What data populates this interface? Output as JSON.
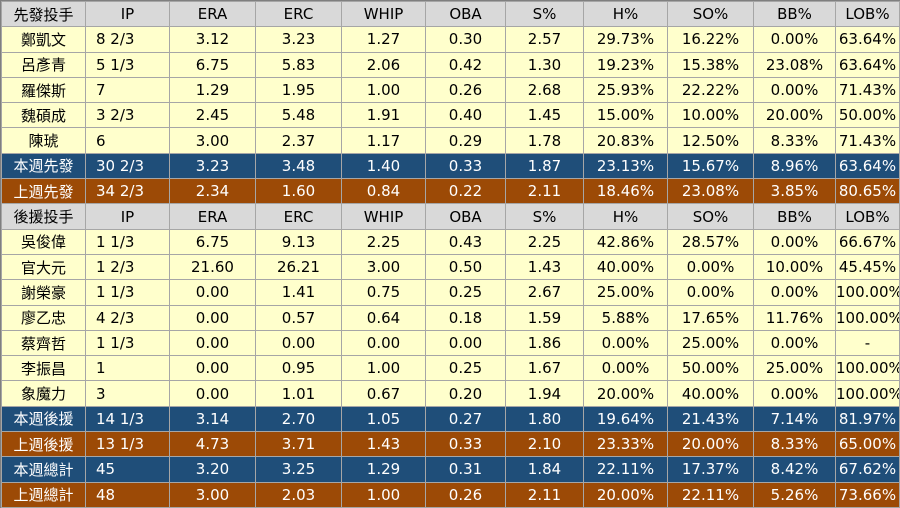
{
  "columns": [
    "IP",
    "ERA",
    "ERC",
    "WHIP",
    "OBA",
    "S%",
    "H%",
    "SO%",
    "BB%",
    "LOB%"
  ],
  "sections": [
    {
      "header": "先發投手",
      "players": [
        {
          "name": "鄭凱文",
          "stats": [
            "8 2/3",
            "3.12",
            "3.23",
            "1.27",
            "0.30",
            "2.57",
            "29.73%",
            "16.22%",
            "0.00%",
            "63.64%"
          ]
        },
        {
          "name": "呂彥青",
          "stats": [
            "5 1/3",
            "6.75",
            "5.83",
            "2.06",
            "0.42",
            "1.30",
            "19.23%",
            "15.38%",
            "23.08%",
            "63.64%"
          ]
        },
        {
          "name": "羅傑斯",
          "stats": [
            "7",
            "1.29",
            "1.95",
            "1.00",
            "0.26",
            "2.68",
            "25.93%",
            "22.22%",
            "0.00%",
            "71.43%"
          ]
        },
        {
          "name": "魏碩成",
          "stats": [
            "3 2/3",
            "2.45",
            "5.48",
            "1.91",
            "0.40",
            "1.45",
            "15.00%",
            "10.00%",
            "20.00%",
            "50.00%"
          ]
        },
        {
          "name": "陳琥",
          "stats": [
            "6",
            "3.00",
            "2.37",
            "1.17",
            "0.29",
            "1.78",
            "20.83%",
            "12.50%",
            "8.33%",
            "71.43%"
          ]
        }
      ],
      "totals": [
        {
          "label": "本週先發",
          "style": "blue",
          "stats": [
            "30 2/3",
            "3.23",
            "3.48",
            "1.40",
            "0.33",
            "1.87",
            "23.13%",
            "15.67%",
            "8.96%",
            "63.64%"
          ]
        },
        {
          "label": "上週先發",
          "style": "brown",
          "stats": [
            "34 2/3",
            "2.34",
            "1.60",
            "0.84",
            "0.22",
            "2.11",
            "18.46%",
            "23.08%",
            "3.85%",
            "80.65%"
          ]
        }
      ]
    },
    {
      "header": "後援投手",
      "players": [
        {
          "name": "吳俊偉",
          "stats": [
            "1 1/3",
            "6.75",
            "9.13",
            "2.25",
            "0.43",
            "2.25",
            "42.86%",
            "28.57%",
            "0.00%",
            "66.67%"
          ]
        },
        {
          "name": "官大元",
          "stats": [
            "1 2/3",
            "21.60",
            "26.21",
            "3.00",
            "0.50",
            "1.43",
            "40.00%",
            "0.00%",
            "10.00%",
            "45.45%"
          ]
        },
        {
          "name": "謝榮豪",
          "stats": [
            "1 1/3",
            "0.00",
            "1.41",
            "0.75",
            "0.25",
            "2.67",
            "25.00%",
            "0.00%",
            "0.00%",
            "100.00%"
          ]
        },
        {
          "name": "廖乙忠",
          "stats": [
            "4 2/3",
            "0.00",
            "0.57",
            "0.64",
            "0.18",
            "1.59",
            "5.88%",
            "17.65%",
            "11.76%",
            "100.00%"
          ]
        },
        {
          "name": "蔡齊哲",
          "stats": [
            "1 1/3",
            "0.00",
            "0.00",
            "0.00",
            "0.00",
            "1.86",
            "0.00%",
            "25.00%",
            "0.00%",
            "-"
          ]
        },
        {
          "name": "李振昌",
          "stats": [
            "1",
            "0.00",
            "0.95",
            "1.00",
            "0.25",
            "1.67",
            "0.00%",
            "50.00%",
            "25.00%",
            "100.00%"
          ]
        },
        {
          "name": "象魔力",
          "stats": [
            "3",
            "0.00",
            "1.01",
            "0.67",
            "0.20",
            "1.94",
            "20.00%",
            "40.00%",
            "0.00%",
            "100.00%"
          ]
        }
      ],
      "totals": [
        {
          "label": "本週後援",
          "style": "blue",
          "stats": [
            "14 1/3",
            "3.14",
            "2.70",
            "1.05",
            "0.27",
            "1.80",
            "19.64%",
            "21.43%",
            "7.14%",
            "81.97%"
          ]
        },
        {
          "label": "上週後援",
          "style": "brown",
          "stats": [
            "13 1/3",
            "4.73",
            "3.71",
            "1.43",
            "0.33",
            "2.10",
            "23.33%",
            "20.00%",
            "8.33%",
            "65.00%"
          ]
        }
      ]
    }
  ],
  "grand_totals": [
    {
      "label": "本週總計",
      "style": "blue",
      "stats": [
        "45",
        "3.20",
        "3.25",
        "1.29",
        "0.31",
        "1.84",
        "22.11%",
        "17.37%",
        "8.42%",
        "67.62%"
      ]
    },
    {
      "label": "上週總計",
      "style": "brown",
      "stats": [
        "48",
        "3.00",
        "2.03",
        "1.00",
        "0.26",
        "2.11",
        "20.00%",
        "22.11%",
        "5.26%",
        "73.66%"
      ]
    }
  ]
}
